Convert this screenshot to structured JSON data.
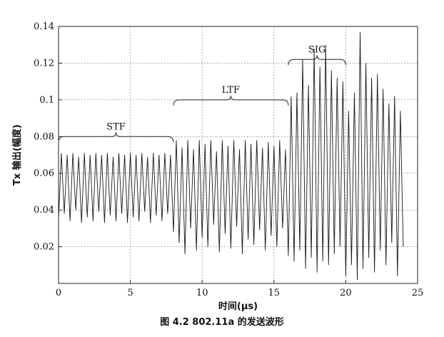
{
  "chart_data": {
    "type": "line",
    "title": "",
    "xlabel": "时间(μs)",
    "ylabel": "Tx 输出(幅度)",
    "xlim": [
      0,
      25
    ],
    "ylim": [
      0,
      0.14
    ],
    "xticks": [
      0,
      5,
      10,
      15,
      20,
      25
    ],
    "yticks": [
      0.02,
      0.04,
      0.06,
      0.08,
      0.1,
      0.12,
      0.14
    ],
    "grid": "dotted",
    "legend": "none",
    "line_color": "#1a1a1a",
    "series": [
      {
        "name": "",
        "segment_note": "STF 0-8 μs: amplitude alternates roughly between 0.033 and 0.071",
        "x": [
          0,
          0.2,
          0.4,
          0.6,
          0.8,
          1.0,
          1.2,
          1.4,
          1.6,
          1.8,
          2.0,
          2.2,
          2.4,
          2.6,
          2.8,
          3.0,
          3.2,
          3.4,
          3.6,
          3.8,
          4.0,
          4.2,
          4.4,
          4.6,
          4.8,
          5.0,
          5.2,
          5.4,
          5.6,
          5.8,
          6.0,
          6.2,
          6.4,
          6.6,
          6.8,
          7.0,
          7.2,
          7.4,
          7.6,
          7.8,
          8.0,
          8.2,
          8.4,
          8.6,
          8.8,
          9.0,
          9.2,
          9.4,
          9.6,
          9.8,
          10.0,
          10.2,
          10.4,
          10.6,
          10.8,
          11.0,
          11.2,
          11.4,
          11.6,
          11.8,
          12.0,
          12.2,
          12.4,
          12.6,
          12.8,
          13.0,
          13.2,
          13.4,
          13.6,
          13.8,
          14.0,
          14.2,
          14.4,
          14.6,
          14.8,
          15.0,
          15.2,
          15.4,
          15.6,
          15.8,
          16.0,
          16.2,
          16.4,
          16.6,
          16.8,
          17.0,
          17.2,
          17.4,
          17.6,
          17.8,
          18.0,
          18.2,
          18.4,
          18.6,
          18.8,
          19.0,
          19.2,
          19.4,
          19.6,
          19.8,
          20.0,
          20.2,
          20.4,
          20.6,
          20.8,
          21.0,
          21.2,
          21.4,
          21.6,
          21.8,
          22.0,
          22.2,
          22.4,
          22.6,
          22.8,
          23.0,
          23.2,
          23.4,
          23.6,
          23.8,
          24.0
        ],
        "y": [
          0.035,
          0.071,
          0.038,
          0.07,
          0.034,
          0.071,
          0.04,
          0.069,
          0.033,
          0.071,
          0.036,
          0.07,
          0.034,
          0.071,
          0.039,
          0.07,
          0.033,
          0.071,
          0.037,
          0.069,
          0.034,
          0.071,
          0.038,
          0.07,
          0.033,
          0.071,
          0.036,
          0.07,
          0.034,
          0.071,
          0.039,
          0.069,
          0.033,
          0.071,
          0.037,
          0.07,
          0.034,
          0.071,
          0.038,
          0.07,
          0.028,
          0.078,
          0.022,
          0.074,
          0.016,
          0.078,
          0.03,
          0.073,
          0.018,
          0.078,
          0.025,
          0.076,
          0.02,
          0.078,
          0.032,
          0.072,
          0.017,
          0.078,
          0.027,
          0.075,
          0.019,
          0.078,
          0.031,
          0.073,
          0.016,
          0.078,
          0.024,
          0.076,
          0.021,
          0.078,
          0.029,
          0.074,
          0.018,
          0.077,
          0.026,
          0.075,
          0.02,
          0.078,
          0.03,
          0.073,
          0.015,
          0.102,
          0.012,
          0.104,
          0.018,
          0.122,
          0.008,
          0.108,
          0.014,
          0.128,
          0.006,
          0.118,
          0.012,
          0.13,
          0.01,
          0.116,
          0.016,
          0.112,
          0.02,
          0.11,
          0.004,
          0.094,
          0.01,
          0.104,
          0.002,
          0.137,
          0.008,
          0.12,
          0.014,
          0.112,
          0.006,
          0.114,
          0.018,
          0.106,
          0.01,
          0.098,
          0.022,
          0.102,
          0.004,
          0.094,
          0.02
        ]
      }
    ],
    "annotations": [
      {
        "label": "STF",
        "x_start": 0,
        "x_end": 8,
        "y": 0.08
      },
      {
        "label": "LTF",
        "x_start": 8,
        "x_end": 16,
        "y": 0.1
      },
      {
        "label": "SIG",
        "x_start": 16,
        "x_end": 20,
        "y": 0.122
      }
    ]
  },
  "caption": "图 4.2   802.11a 的发送波形"
}
